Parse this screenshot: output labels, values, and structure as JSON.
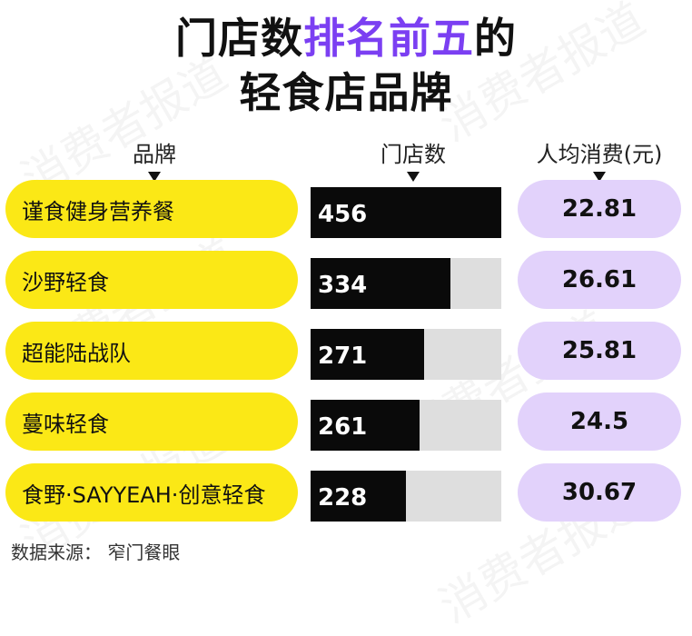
{
  "title": {
    "line1_part1": "门店数",
    "line1_highlight": "排名前五",
    "line1_part2": "的",
    "line2": "轻食店品牌"
  },
  "columns": {
    "brand": "品牌",
    "stores": "门店数",
    "price": "人均消费(元)"
  },
  "colors": {
    "title_highlight": "#7b3ff2",
    "brand_pill": "#fbe816",
    "bar_fill": "#0a0a0a",
    "bar_track": "#dedede",
    "price_pill": "#e2d2fb"
  },
  "chart_data": {
    "type": "bar",
    "orientation": "horizontal",
    "categories": [
      "谨食健身营养餐",
      "沙野轻食",
      "超能陆战队",
      "蔓味轻食",
      "食野·SAYYEAH·创意轻食"
    ],
    "series": [
      {
        "name": "门店数",
        "values": [
          456,
          334,
          271,
          261,
          228
        ]
      },
      {
        "name": "人均消费(元)",
        "values": [
          "22.81",
          "26.61",
          "25.81",
          "24.5",
          "30.67"
        ]
      }
    ],
    "xlim": [
      0,
      456
    ]
  },
  "source": "数据来源：  窄门餐眼",
  "watermark": "消费者报道"
}
